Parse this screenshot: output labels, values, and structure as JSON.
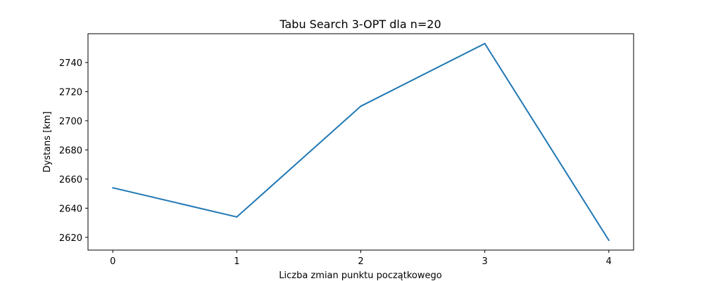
{
  "chart_data": {
    "type": "line",
    "title": "Tabu Search 3-OPT dla n=20",
    "xlabel": "Liczba zmian punktu początkowego",
    "ylabel": "Dystans [km]",
    "x": [
      0,
      1,
      2,
      3,
      4
    ],
    "y": [
      2654,
      2634,
      2710,
      2753,
      2618
    ],
    "xticks": [
      0,
      1,
      2,
      3,
      4
    ],
    "yticks": [
      2620,
      2640,
      2660,
      2680,
      2700,
      2720,
      2740
    ],
    "xlim": [
      -0.2,
      4.2
    ],
    "ylim": [
      2611.25,
      2759.75
    ],
    "grid": false,
    "legend": "none",
    "colors": {
      "line": "#1f77b4",
      "axes": "#000000"
    }
  }
}
